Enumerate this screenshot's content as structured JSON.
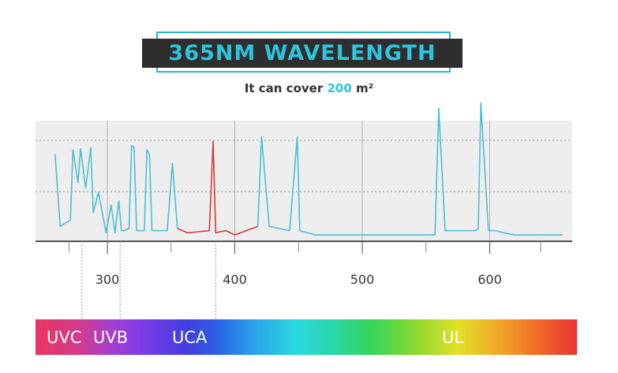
{
  "header": {
    "title": "365NM WAVELENGTH",
    "subtitle_prefix": "It can cover ",
    "subtitle_value": "200",
    "subtitle_unit": "m²"
  },
  "spectrum": {
    "bands": [
      {
        "label": "UVC"
      },
      {
        "label": "UVB"
      },
      {
        "label": "UCA"
      },
      {
        "label": "UL"
      }
    ]
  },
  "colors": {
    "accent": "#2cc4df",
    "line": "#4bbfd6",
    "highlight": "#d83a3a",
    "plot_bg": "#eeeeee"
  },
  "chart_data": {
    "type": "line",
    "title": "",
    "xlabel": "",
    "ylabel": "",
    "xlim": [
      250,
      660
    ],
    "ylim": [
      0,
      100
    ],
    "x_ticks": [
      300,
      400,
      500,
      600
    ],
    "grid": true,
    "series": [
      {
        "highlight": false,
        "x": [
          259,
          263,
          271,
          273,
          277,
          279,
          283,
          287,
          289,
          293,
          295,
          299,
          303,
          306,
          309,
          311,
          313,
          317,
          319,
          321,
          323,
          329,
          331,
          333,
          335,
          337,
          345,
          347,
          351,
          355
        ],
        "y": [
          82,
          14,
          20,
          86,
          55,
          87,
          50,
          88,
          27,
          46,
          34,
          8,
          34,
          8,
          38,
          10,
          10,
          12,
          90,
          88,
          10,
          10,
          86,
          82,
          10,
          10,
          10,
          10,
          73,
          12
        ]
      },
      {
        "highlight": true,
        "x": [
          355,
          363,
          380,
          383,
          385,
          393,
          400,
          418
        ],
        "y": [
          12,
          8,
          10,
          94,
          8,
          10,
          6,
          14
        ]
      },
      {
        "highlight": false,
        "x": [
          418,
          421,
          427,
          443,
          449,
          451,
          463,
          557,
          560,
          565,
          589,
          591,
          593,
          599,
          604,
          619,
          657
        ],
        "y": [
          14,
          98,
          14,
          10,
          98,
          10,
          6,
          6,
          125,
          10,
          10,
          12,
          130,
          10,
          10,
          6,
          6
        ]
      }
    ]
  }
}
